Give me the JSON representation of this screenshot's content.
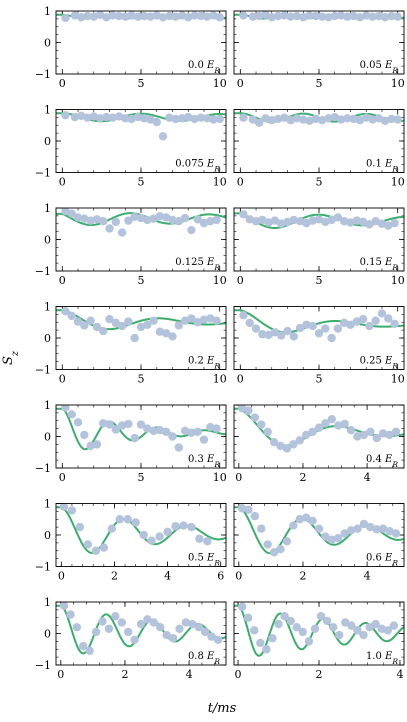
{
  "chart_data": {
    "type": "scatter",
    "xlabel": "t/ms",
    "ylabel": "S_z",
    "ylim": [
      -1,
      1
    ],
    "yticks": [
      -1,
      0,
      1
    ],
    "colors": {
      "data": "#b3c3db",
      "fit": "#3aae6c",
      "frame": "#000000"
    },
    "panels": [
      {
        "label": "0.0 E_R",
        "xlim": [
          -0.4,
          10.4
        ],
        "xticks": [
          0,
          5,
          10
        ],
        "fit": {
          "offset": 0.82,
          "amp": 0.04,
          "freq": 0.35,
          "decay": 0.02,
          "phase": 0
        },
        "x": [
          0.2,
          0.8,
          1.2,
          1.6,
          2.0,
          2.4,
          2.8,
          3.2,
          3.6,
          4.0,
          4.4,
          4.8,
          5.2,
          5.6,
          6.0,
          6.4,
          6.8,
          7.2,
          7.6,
          8.0,
          8.4,
          8.8,
          9.2,
          9.6,
          10.0
        ],
        "y": [
          0.78,
          0.86,
          0.8,
          0.84,
          0.82,
          0.88,
          0.8,
          0.86,
          0.84,
          0.82,
          0.86,
          0.82,
          0.84,
          0.82,
          0.86,
          0.8,
          0.84,
          0.82,
          0.86,
          0.8,
          0.86,
          0.84,
          0.82,
          0.86,
          0.8
        ]
      },
      {
        "label": "0.05 E_R",
        "xlim": [
          -0.4,
          10.4
        ],
        "xticks": [
          0,
          5,
          10
        ],
        "fit": {
          "offset": 0.82,
          "amp": 0.04,
          "freq": 0.35,
          "decay": 0.02,
          "phase": 0
        },
        "x": [
          0.2,
          0.8,
          1.2,
          1.6,
          2.0,
          2.4,
          2.8,
          3.2,
          3.6,
          4.0,
          4.4,
          4.8,
          5.2,
          5.6,
          6.0,
          6.4,
          6.8,
          7.2,
          7.6,
          8.0,
          8.4,
          8.8,
          9.2,
          9.6,
          10.0
        ],
        "y": [
          0.86,
          0.82,
          0.84,
          0.88,
          0.8,
          0.84,
          0.86,
          0.82,
          0.84,
          0.8,
          0.86,
          0.84,
          0.82,
          0.8,
          0.84,
          0.86,
          0.82,
          0.84,
          0.8,
          0.86,
          0.82,
          0.84,
          0.8,
          0.84,
          0.82
        ]
      },
      {
        "label": "0.075 E_R",
        "xlim": [
          -0.4,
          10.4
        ],
        "xticks": [
          0,
          5,
          10
        ],
        "fit": {
          "offset": 0.75,
          "amp": 0.06,
          "freq": 0.2,
          "decay": 0.02,
          "phase": 0
        },
        "x": [
          0.2,
          0.8,
          1.2,
          1.6,
          2.0,
          2.4,
          2.8,
          3.2,
          3.6,
          4.0,
          4.4,
          4.8,
          5.2,
          5.6,
          6.0,
          6.4,
          6.8,
          7.2,
          7.6,
          8.0,
          8.4,
          8.8,
          9.2,
          9.6,
          10.0
        ],
        "y": [
          0.82,
          0.76,
          0.8,
          0.74,
          0.78,
          0.72,
          0.76,
          0.74,
          0.78,
          0.72,
          0.7,
          0.76,
          0.72,
          0.68,
          0.6,
          0.15,
          0.74,
          0.7,
          0.72,
          0.76,
          0.7,
          0.74,
          0.72,
          0.68,
          0.7
        ]
      },
      {
        "label": "0.1 E_R",
        "xlim": [
          -0.4,
          10.4
        ],
        "xticks": [
          0,
          5,
          10
        ],
        "fit": {
          "offset": 0.74,
          "amp": 0.07,
          "freq": 0.25,
          "decay": 0.02,
          "phase": 0
        },
        "x": [
          0.2,
          0.8,
          1.2,
          1.6,
          2.0,
          2.4,
          2.8,
          3.2,
          3.6,
          4.0,
          4.4,
          4.8,
          5.2,
          5.6,
          6.0,
          6.4,
          6.8,
          7.2,
          7.6,
          8.0,
          8.4,
          8.8,
          9.2,
          9.6,
          10.0
        ],
        "y": [
          0.74,
          0.68,
          0.58,
          0.72,
          0.66,
          0.7,
          0.74,
          0.66,
          0.72,
          0.68,
          0.64,
          0.7,
          0.66,
          0.72,
          0.76,
          0.68,
          0.72,
          0.7,
          0.66,
          0.74,
          0.68,
          0.72,
          0.64,
          0.7,
          0.68
        ]
      },
      {
        "label": "0.125 E_R",
        "xlim": [
          -0.4,
          10.4
        ],
        "xticks": [
          0,
          5,
          10
        ],
        "fit": {
          "offset": 0.66,
          "amp": 0.12,
          "freq": 0.2,
          "decay": 0.05,
          "phase": 0.8
        },
        "x": [
          0.2,
          0.6,
          1.0,
          1.4,
          1.8,
          2.2,
          2.6,
          3.0,
          3.4,
          3.8,
          4.2,
          4.6,
          5.0,
          5.4,
          5.8,
          6.2,
          6.6,
          7.0,
          7.4,
          7.8,
          8.2,
          8.6,
          9.0,
          9.4,
          9.8
        ],
        "y": [
          0.9,
          0.82,
          0.7,
          0.66,
          0.6,
          0.64,
          0.58,
          0.35,
          0.56,
          0.22,
          0.6,
          0.72,
          0.68,
          0.62,
          0.66,
          0.74,
          0.7,
          0.62,
          0.58,
          0.68,
          0.3,
          0.64,
          0.52,
          0.58,
          0.62
        ]
      },
      {
        "label": "0.15 E_R",
        "xlim": [
          -0.4,
          10.4
        ],
        "xticks": [
          0,
          5,
          10
        ],
        "fit": {
          "offset": 0.6,
          "amp": 0.18,
          "freq": 0.18,
          "decay": 0.08,
          "phase": 0.6
        },
        "x": [
          0.2,
          0.6,
          1.0,
          1.4,
          1.8,
          2.2,
          2.6,
          3.0,
          3.4,
          3.8,
          4.2,
          4.6,
          5.0,
          5.4,
          5.8,
          6.2,
          6.6,
          7.0,
          7.4,
          7.8,
          8.2,
          8.6,
          9.0,
          9.4,
          9.8
        ],
        "y": [
          0.8,
          0.64,
          0.58,
          0.62,
          0.54,
          0.6,
          0.5,
          0.56,
          0.62,
          0.58,
          0.52,
          0.6,
          0.64,
          0.56,
          0.62,
          0.7,
          0.58,
          0.54,
          0.6,
          0.56,
          0.48,
          0.58,
          0.5,
          0.44,
          0.52
        ]
      },
      {
        "label": "0.2 E_R",
        "xlim": [
          -0.4,
          10.4
        ],
        "xticks": [
          0,
          5,
          10
        ],
        "fit": {
          "offset": 0.5,
          "amp": 0.35,
          "freq": 0.16,
          "decay": 0.18,
          "phase": 0
        },
        "x": [
          0.2,
          0.6,
          1.0,
          1.4,
          1.8,
          2.2,
          2.6,
          3.0,
          3.4,
          3.8,
          4.2,
          4.6,
          5.0,
          5.4,
          5.8,
          6.2,
          6.6,
          7.0,
          7.4,
          7.8,
          8.2,
          8.6,
          9.0,
          9.4,
          9.8
        ],
        "y": [
          0.85,
          0.7,
          0.52,
          0.4,
          0.55,
          0.35,
          0.22,
          0.6,
          0.48,
          0.38,
          0.52,
          0.0,
          0.35,
          0.42,
          0.55,
          0.2,
          0.15,
          0.05,
          0.4,
          0.55,
          0.62,
          0.5,
          0.58,
          0.62,
          0.55
        ]
      },
      {
        "label": "0.25 E_R",
        "xlim": [
          -0.4,
          10.4
        ],
        "xticks": [
          0,
          5,
          10
        ],
        "fit": {
          "offset": 0.42,
          "amp": 0.5,
          "freq": 0.16,
          "decay": 0.22,
          "phase": 0
        },
        "x": [
          0.2,
          0.6,
          1.0,
          1.4,
          1.8,
          2.2,
          2.6,
          3.0,
          3.4,
          3.8,
          4.2,
          4.6,
          5.0,
          5.4,
          5.8,
          6.2,
          6.6,
          7.0,
          7.4,
          7.8,
          8.2,
          8.6,
          9.0,
          9.4,
          9.8
        ],
        "y": [
          0.72,
          0.48,
          0.3,
          0.12,
          0.1,
          0.18,
          0.08,
          0.22,
          0.05,
          0.32,
          0.42,
          0.38,
          0.15,
          0.3,
          0.0,
          0.3,
          0.48,
          0.42,
          0.52,
          0.6,
          0.38,
          0.55,
          0.78,
          0.62,
          0.45
        ]
      },
      {
        "label": "0.3 E_R",
        "xlim": [
          -0.4,
          10.4
        ],
        "xticks": [
          0,
          5,
          10
        ],
        "fit": {
          "offset": 0.12,
          "amp": 0.78,
          "freq": 0.33,
          "decay": 0.25,
          "phase": 0
        },
        "x": [
          0.2,
          0.6,
          1.0,
          1.4,
          1.8,
          2.2,
          2.6,
          3.0,
          3.4,
          3.8,
          4.2,
          4.6,
          5.0,
          5.4,
          5.8,
          6.2,
          6.6,
          7.0,
          7.4,
          7.8,
          8.2,
          8.6,
          9.0,
          9.4,
          9.8
        ],
        "y": [
          0.92,
          0.7,
          0.45,
          0.05,
          -0.3,
          -0.25,
          0.42,
          0.38,
          0.22,
          0.35,
          0.4,
          -0.05,
          0.38,
          0.25,
          0.18,
          0.2,
          0.15,
          0.0,
          -0.35,
          0.18,
          0.12,
          0.15,
          -0.1,
          0.3,
          0.25
        ]
      },
      {
        "label": "0.4 E_R",
        "xlim": [
          -0.15,
          5.15
        ],
        "xticks": [
          0,
          2,
          4
        ],
        "fit": {
          "offset": 0.12,
          "amp": 0.75,
          "freq": 0.32,
          "decay": 0.42,
          "phase": 0
        },
        "x": [
          0.1,
          0.3,
          0.5,
          0.7,
          0.9,
          1.1,
          1.3,
          1.5,
          1.7,
          1.9,
          2.1,
          2.3,
          2.5,
          2.7,
          2.9,
          3.1,
          3.3,
          3.5,
          3.7,
          3.9,
          4.1,
          4.3,
          4.5,
          4.7,
          4.9
        ],
        "y": [
          0.9,
          0.82,
          0.6,
          0.38,
          0.15,
          -0.18,
          -0.3,
          -0.38,
          -0.25,
          -0.12,
          0.05,
          0.15,
          0.28,
          0.42,
          0.55,
          0.35,
          0.4,
          0.2,
          0.0,
          0.05,
          0.15,
          -0.05,
          0.1,
          0.05,
          0.15
        ]
      },
      {
        "label": "0.5 E_R",
        "xlim": [
          -0.2,
          6.2
        ],
        "xticks": [
          0,
          2,
          4,
          6
        ],
        "fit": {
          "offset": 0.05,
          "amp": 0.9,
          "freq": 0.42,
          "decay": 0.25,
          "phase": 0
        },
        "x": [
          0.1,
          0.4,
          0.7,
          1.0,
          1.3,
          1.6,
          1.9,
          2.2,
          2.5,
          2.8,
          3.1,
          3.4,
          3.7,
          4.0,
          4.3,
          4.6,
          4.9,
          5.2,
          5.5
        ],
        "y": [
          0.9,
          0.78,
          0.25,
          -0.3,
          -0.5,
          -0.4,
          0.2,
          0.5,
          0.5,
          0.4,
          0.0,
          -0.18,
          -0.05,
          0.1,
          0.28,
          0.3,
          0.25,
          -0.12,
          -0.2
        ]
      },
      {
        "label": "0.6 E_R",
        "xlim": [
          -0.15,
          5.15
        ],
        "xticks": [
          0,
          2,
          4
        ],
        "fit": {
          "offset": 0.05,
          "amp": 0.95,
          "freq": 0.5,
          "decay": 0.28,
          "phase": 0
        },
        "x": [
          0.1,
          0.3,
          0.5,
          0.7,
          0.9,
          1.1,
          1.3,
          1.5,
          1.7,
          1.9,
          2.1,
          2.3,
          2.5,
          2.7,
          2.9,
          3.1,
          3.3,
          3.5,
          3.7,
          3.9,
          4.1,
          4.3,
          4.5,
          4.7,
          4.9
        ],
        "y": [
          0.85,
          0.8,
          0.6,
          0.2,
          -0.3,
          -0.55,
          -0.45,
          -0.2,
          0.3,
          0.5,
          0.55,
          0.45,
          0.2,
          -0.05,
          -0.15,
          -0.1,
          0.05,
          0.15,
          0.2,
          0.35,
          0.25,
          0.18,
          0.2,
          0.12,
          0.05
        ]
      },
      {
        "label": "0.8 E_R",
        "xlim": [
          -0.15,
          5.15
        ],
        "xticks": [
          0,
          2,
          4
        ],
        "fit": {
          "offset": 0.05,
          "amp": 0.9,
          "freq": 0.7,
          "decay": 0.28,
          "phase": 0
        },
        "x": [
          0.1,
          0.3,
          0.5,
          0.7,
          0.9,
          1.1,
          1.3,
          1.5,
          1.7,
          1.9,
          2.1,
          2.3,
          2.5,
          2.7,
          2.9,
          3.1,
          3.3,
          3.5,
          3.7,
          3.9,
          4.1,
          4.3,
          4.5,
          4.7,
          4.9
        ],
        "y": [
          0.88,
          0.6,
          0.2,
          -0.4,
          -0.55,
          0.05,
          0.38,
          0.15,
          0.55,
          0.35,
          0.05,
          -0.2,
          0.3,
          0.45,
          0.35,
          0.2,
          -0.05,
          -0.15,
          0.15,
          0.35,
          0.3,
          0.2,
          0.05,
          -0.1,
          -0.2
        ]
      },
      {
        "label": "1.0 E_R",
        "xlim": [
          -0.1,
          4.1
        ],
        "xticks": [
          0,
          2,
          4
        ],
        "fit": {
          "offset": 0.02,
          "amp": 0.9,
          "freq": 0.95,
          "decay": 0.32,
          "phase": 0
        },
        "x": [
          0.1,
          0.25,
          0.4,
          0.55,
          0.7,
          0.85,
          1.0,
          1.15,
          1.3,
          1.45,
          1.6,
          1.75,
          1.9,
          2.05,
          2.2,
          2.35,
          2.5,
          2.65,
          2.8,
          2.95,
          3.1,
          3.25,
          3.4,
          3.55,
          3.7,
          3.85
        ],
        "y": [
          0.85,
          0.5,
          0.1,
          -0.3,
          -0.5,
          -0.15,
          0.3,
          0.55,
          0.4,
          0.2,
          0.05,
          -0.25,
          0.15,
          0.55,
          0.4,
          0.2,
          -0.05,
          0.35,
          0.25,
          0.1,
          -0.05,
          0.2,
          0.3,
          0.15,
          0.1,
          0.25
        ]
      }
    ]
  }
}
